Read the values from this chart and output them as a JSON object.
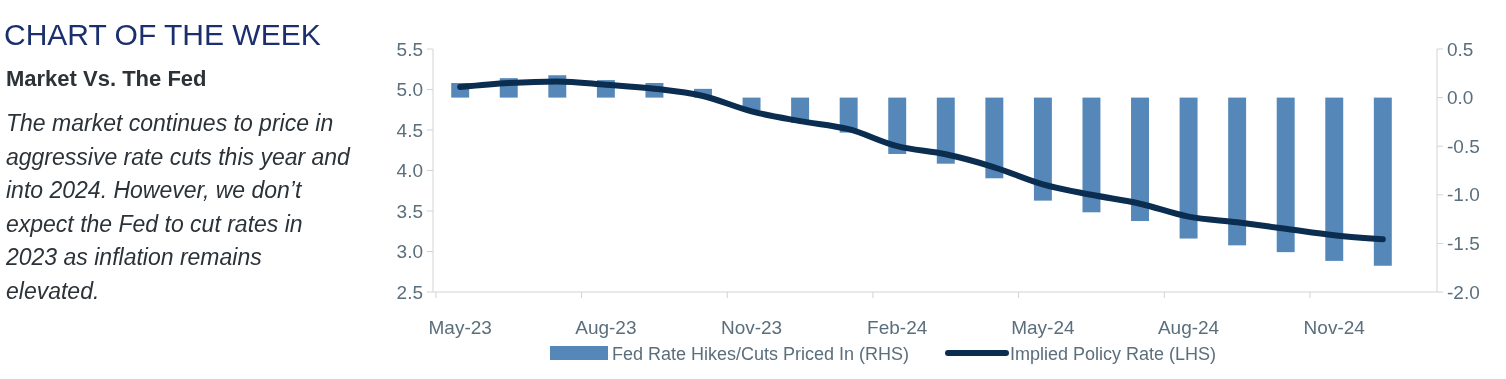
{
  "chart_data": {
    "type": "bar",
    "title": "CHART OF THE WEEK",
    "subtitle": "Market Vs. The Fed",
    "annotations": [
      "The market continues to price in aggressive rate cuts this year and into 2024. However, we don’t expect the Fed to cut rates in 2023 as inflation remains elevated."
    ],
    "categories": [
      "May-23",
      null,
      null,
      "Aug-23",
      null,
      null,
      "Nov-23",
      null,
      null,
      "Feb-24",
      null,
      null,
      "May-24",
      null,
      null,
      "Aug-24",
      null,
      null,
      "Nov-24",
      null
    ],
    "series": [
      {
        "name": "Fed Rate Hikes/Cuts Priced In (RHS)",
        "axis": "y2",
        "color": "#5588b9",
        "values": [
          0.15,
          0.2,
          0.23,
          0.18,
          0.15,
          0.09,
          -0.13,
          -0.26,
          -0.36,
          -0.58,
          -0.68,
          -0.83,
          -1.06,
          -1.18,
          -1.27,
          -1.45,
          -1.52,
          -1.59,
          -1.68,
          -1.73
        ]
      },
      {
        "name": "Implied Policy Rate (LHS)",
        "type": "line",
        "axis": "y",
        "color": "#0b2d4f",
        "values": [
          5.03,
          5.08,
          5.1,
          5.06,
          5.01,
          4.92,
          4.73,
          4.61,
          4.51,
          4.3,
          4.2,
          4.04,
          3.83,
          3.7,
          3.59,
          3.43,
          3.36,
          3.28,
          3.2,
          3.15
        ]
      }
    ],
    "ylim": [
      2.5,
      5.5
    ],
    "yticks": [
      2.5,
      {
        "value": 3,
        "label": "3.0"
      },
      3.5,
      {
        "value": 4,
        "label": "4.0"
      },
      4.5,
      {
        "value": 5,
        "label": "5.0"
      },
      5.5
    ],
    "y2lim": [
      -2,
      0.5
    ],
    "y2ticks": [
      {
        "value": -2,
        "label": "-2.0"
      },
      -1.5,
      {
        "value": -1,
        "label": "-1.0"
      },
      -0.5,
      {
        "value": 0,
        "label": "0.0"
      },
      0.5
    ],
    "legend": "bottom",
    "grid": false
  }
}
